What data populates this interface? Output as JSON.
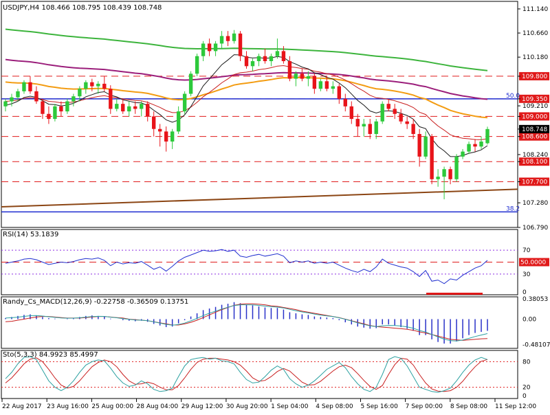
{
  "colors": {
    "background": "#ffffff",
    "grid": "#b4b4b4",
    "bull": "#2dc93b",
    "bear": "#e8141a",
    "ema_fast": "#1a1a1a",
    "ema_red": "#c81e1e",
    "ema_orange": "#f39c12",
    "ema_purple": "#9b1e7b",
    "ema_green": "#3cb43c",
    "trend_brown": "#8b4513",
    "fib_blue": "#1c2ad0",
    "level_red": "#e01a1a",
    "rsi_line": "#1f2fcf",
    "macd_hist": "#2830c8",
    "macd_signal": "#c81e1e",
    "macd_line": "#2aa0a0",
    "stoch_main": "#2aa0a0",
    "stoch_signal": "#c81e1e",
    "current_price_bg": "#000000"
  },
  "chart_data": [
    {
      "type": "candlestick",
      "panel": "main",
      "title": "USDJPY,H4  108.466 108.795 108.439 108.748",
      "ylim": [
        106.79,
        111.29
      ],
      "yticks": [
        "111.140",
        "110.660",
        "110.180",
        "109.800",
        "109.350",
        "109.210",
        "109.000",
        "108.748",
        "108.600",
        "108.240",
        "108.100",
        "107.700",
        "107.280",
        "106.790"
      ],
      "horizontal_levels": [
        {
          "value": 109.8,
          "label": "109.800",
          "style": "red-dashed"
        },
        {
          "value": 109.35,
          "label": "109.350",
          "style": "red-dashed"
        },
        {
          "value": 109.0,
          "label": "109.000",
          "style": "red-dashed"
        },
        {
          "value": 108.6,
          "label": "108.600",
          "style": "red-dashed"
        },
        {
          "value": 108.1,
          "label": "108.100",
          "style": "red-dashed"
        },
        {
          "value": 107.7,
          "label": "107.700",
          "style": "red-dashed"
        }
      ],
      "fib_levels": [
        {
          "value": 109.35,
          "label": "50.0"
        },
        {
          "value": 107.1,
          "label": "38.2"
        }
      ],
      "current_price": "108.748",
      "candles_ohlc": [
        [
          109.2,
          109.35,
          109.1,
          109.3
        ],
        [
          109.3,
          109.45,
          109.2,
          109.38
        ],
        [
          109.38,
          109.55,
          109.3,
          109.5
        ],
        [
          109.5,
          109.72,
          109.45,
          109.68
        ],
        [
          109.68,
          109.8,
          109.45,
          109.5
        ],
        [
          109.5,
          109.6,
          109.25,
          109.3
        ],
        [
          109.3,
          109.35,
          108.95,
          109.05
        ],
        [
          109.05,
          109.2,
          108.85,
          108.95
        ],
        [
          108.95,
          109.25,
          108.9,
          109.2
        ],
        [
          109.2,
          109.3,
          109.0,
          109.1
        ],
        [
          109.1,
          109.35,
          109.05,
          109.3
        ],
        [
          109.3,
          109.45,
          109.2,
          109.4
        ],
        [
          109.4,
          109.6,
          109.3,
          109.55
        ],
        [
          109.55,
          109.72,
          109.45,
          109.68
        ],
        [
          109.68,
          109.75,
          109.5,
          109.6
        ],
        [
          109.6,
          109.7,
          109.45,
          109.65
        ],
        [
          109.65,
          109.8,
          109.5,
          109.55
        ],
        [
          109.55,
          109.62,
          109.05,
          109.15
        ],
        [
          109.15,
          109.35,
          109.1,
          109.25
        ],
        [
          109.25,
          109.35,
          109.05,
          109.1
        ],
        [
          109.1,
          109.3,
          109.0,
          109.2
        ],
        [
          109.2,
          109.3,
          109.05,
          109.15
        ],
        [
          109.15,
          109.3,
          109.0,
          109.25
        ],
        [
          109.25,
          109.3,
          108.9,
          109.0
        ],
        [
          109.0,
          109.1,
          108.6,
          108.75
        ],
        [
          108.75,
          108.85,
          108.4,
          108.7
        ],
        [
          108.7,
          108.8,
          108.3,
          108.5
        ],
        [
          108.5,
          108.75,
          108.35,
          108.7
        ],
        [
          108.7,
          109.2,
          108.65,
          109.1
        ],
        [
          109.1,
          109.5,
          109.05,
          109.45
        ],
        [
          109.45,
          109.9,
          109.4,
          109.85
        ],
        [
          109.85,
          110.25,
          109.8,
          110.2
        ],
        [
          110.2,
          110.5,
          110.1,
          110.45
        ],
        [
          110.45,
          110.55,
          110.2,
          110.3
        ],
        [
          110.3,
          110.5,
          110.2,
          110.45
        ],
        [
          110.45,
          110.7,
          110.35,
          110.6
        ],
        [
          110.6,
          110.7,
          110.4,
          110.5
        ],
        [
          110.5,
          110.72,
          110.45,
          110.65
        ],
        [
          110.65,
          110.7,
          110.1,
          110.2
        ],
        [
          110.2,
          110.3,
          109.95,
          110.0
        ],
        [
          110.0,
          110.15,
          109.9,
          110.1
        ],
        [
          110.1,
          110.25,
          110.0,
          110.2
        ],
        [
          110.2,
          110.35,
          110.05,
          110.1
        ],
        [
          110.1,
          110.25,
          110.0,
          110.2
        ],
        [
          110.2,
          110.55,
          110.15,
          110.3
        ],
        [
          110.3,
          110.4,
          110.05,
          110.1
        ],
        [
          110.1,
          110.2,
          109.7,
          109.75
        ],
        [
          109.75,
          109.9,
          109.6,
          109.85
        ],
        [
          109.85,
          109.95,
          109.7,
          109.75
        ],
        [
          109.75,
          109.9,
          109.6,
          109.8
        ],
        [
          109.8,
          109.85,
          109.45,
          109.55
        ],
        [
          109.55,
          109.75,
          109.5,
          109.7
        ],
        [
          109.7,
          109.8,
          109.5,
          109.55
        ],
        [
          109.55,
          109.7,
          109.45,
          109.6
        ],
        [
          109.6,
          109.65,
          109.25,
          109.35
        ],
        [
          109.35,
          109.45,
          109.1,
          109.2
        ],
        [
          109.2,
          109.3,
          108.85,
          108.95
        ],
        [
          108.95,
          109.05,
          108.6,
          108.8
        ],
        [
          108.8,
          108.95,
          108.6,
          108.85
        ],
        [
          108.85,
          108.95,
          108.55,
          108.65
        ],
        [
          108.65,
          108.95,
          108.55,
          108.9
        ],
        [
          108.9,
          109.3,
          108.85,
          109.25
        ],
        [
          109.25,
          109.35,
          109.1,
          109.15
        ],
        [
          109.15,
          109.25,
          108.95,
          109.05
        ],
        [
          109.05,
          109.15,
          108.85,
          108.9
        ],
        [
          108.9,
          109.0,
          108.75,
          108.85
        ],
        [
          108.85,
          108.95,
          108.55,
          108.65
        ],
        [
          108.65,
          108.75,
          108.0,
          108.2
        ],
        [
          108.2,
          108.7,
          108.15,
          108.6
        ],
        [
          108.6,
          108.65,
          107.65,
          107.75
        ],
        [
          107.75,
          107.95,
          107.6,
          107.8
        ],
        [
          107.8,
          108.0,
          107.35,
          107.95
        ],
        [
          107.95,
          108.0,
          107.65,
          107.75
        ],
        [
          107.75,
          108.25,
          107.7,
          108.2
        ],
        [
          108.2,
          108.35,
          108.15,
          108.3
        ],
        [
          108.3,
          108.5,
          108.25,
          108.45
        ],
        [
          108.45,
          108.55,
          108.3,
          108.4
        ],
        [
          108.4,
          108.6,
          108.35,
          108.5
        ],
        [
          108.466,
          108.795,
          108.439,
          108.748
        ]
      ],
      "xlabels": [
        "22 Aug 2017",
        "23 Aug 16:00",
        "25 Aug 00:00",
        "28 Aug 04:00",
        "29 Aug 12:00",
        "30 Aug 20:00",
        "1 Sep 04:00",
        "4 Sep 08:00",
        "5 Sep 16:00",
        "7 Sep 00:00",
        "8 Sep 08:00",
        "11 Sep 12:00"
      ]
    },
    {
      "type": "line",
      "panel": "rsi",
      "title": "RSI(14) 53.1839",
      "ylim": [
        0,
        100
      ],
      "yticks": [
        "70",
        "50",
        "30",
        "0"
      ],
      "levels": [
        70,
        50,
        30
      ],
      "level_label": "50.0000",
      "values": [
        48,
        50,
        52,
        55,
        56,
        54,
        50,
        46,
        48,
        50,
        49,
        51,
        54,
        56,
        55,
        57,
        53,
        44,
        50,
        47,
        49,
        48,
        51,
        45,
        38,
        42,
        35,
        43,
        52,
        58,
        62,
        66,
        70,
        68,
        69,
        71,
        68,
        70,
        60,
        58,
        61,
        63,
        60,
        62,
        64,
        60,
        49,
        52,
        50,
        52,
        48,
        50,
        48,
        50,
        45,
        40,
        36,
        33,
        38,
        34,
        42,
        55,
        48,
        45,
        42,
        40,
        34,
        26,
        36,
        18,
        20,
        14,
        22,
        20,
        28,
        34,
        40,
        44,
        53
      ]
    },
    {
      "type": "bar",
      "panel": "macd",
      "title": "Randy_Cs_MACD(12,26,9) -0.22758 -0.36509 0.13751",
      "ylim": [
        -0.55,
        0.42
      ],
      "yticks": [
        "0.38053",
        "0.00",
        "-0.48107"
      ],
      "histogram": [
        0.02,
        0.04,
        0.06,
        0.08,
        0.09,
        0.07,
        0.04,
        0.02,
        0.01,
        0.0,
        0.01,
        0.02,
        0.04,
        0.06,
        0.07,
        0.06,
        0.05,
        0.01,
        0.0,
        -0.02,
        -0.03,
        -0.04,
        -0.03,
        -0.05,
        -0.09,
        -0.12,
        -0.15,
        -0.14,
        -0.08,
        -0.02,
        0.05,
        0.11,
        0.17,
        0.2,
        0.23,
        0.27,
        0.29,
        0.32,
        0.3,
        0.27,
        0.26,
        0.24,
        0.22,
        0.21,
        0.21,
        0.18,
        0.13,
        0.11,
        0.09,
        0.08,
        0.05,
        0.04,
        0.03,
        0.02,
        -0.02,
        -0.06,
        -0.1,
        -0.14,
        -0.16,
        -0.18,
        -0.17,
        -0.1,
        -0.1,
        -0.12,
        -0.15,
        -0.18,
        -0.22,
        -0.3,
        -0.3,
        -0.38,
        -0.43,
        -0.46,
        -0.46,
        -0.42,
        -0.36,
        -0.3,
        -0.26,
        -0.24,
        -0.22
      ],
      "signal": [
        -0.05,
        -0.04,
        -0.02,
        0.0,
        0.02,
        0.04,
        0.05,
        0.05,
        0.04,
        0.03,
        0.02,
        0.02,
        0.02,
        0.03,
        0.04,
        0.05,
        0.05,
        0.04,
        0.03,
        0.02,
        0.0,
        -0.01,
        -0.02,
        -0.03,
        -0.05,
        -0.07,
        -0.09,
        -0.11,
        -0.11,
        -0.09,
        -0.06,
        -0.02,
        0.03,
        0.08,
        0.13,
        0.18,
        0.22,
        0.26,
        0.28,
        0.29,
        0.29,
        0.28,
        0.27,
        0.25,
        0.24,
        0.22,
        0.2,
        0.18,
        0.15,
        0.13,
        0.11,
        0.09,
        0.07,
        0.05,
        0.03,
        0.0,
        -0.03,
        -0.06,
        -0.09,
        -0.12,
        -0.14,
        -0.15,
        -0.16,
        -0.17,
        -0.18,
        -0.19,
        -0.21,
        -0.24,
        -0.26,
        -0.29,
        -0.32,
        -0.35,
        -0.38,
        -0.39,
        -0.4,
        -0.39,
        -0.38,
        -0.37,
        -0.365
      ]
    },
    {
      "type": "line",
      "panel": "stochastic",
      "title": "Sto(5,3,3) 84.9923 85.4997",
      "ylim": [
        0,
        100
      ],
      "yticks": [
        "80",
        "20",
        "0"
      ],
      "levels": [
        80,
        20
      ],
      "main": [
        40,
        55,
        75,
        90,
        92,
        85,
        60,
        35,
        20,
        12,
        20,
        35,
        55,
        72,
        80,
        84,
        82,
        65,
        45,
        30,
        22,
        25,
        35,
        28,
        15,
        10,
        12,
        18,
        45,
        70,
        85,
        88,
        90,
        86,
        88,
        82,
        80,
        75,
        55,
        38,
        30,
        32,
        45,
        60,
        70,
        62,
        40,
        28,
        20,
        25,
        35,
        48,
        62,
        70,
        78,
        66,
        45,
        28,
        15,
        10,
        20,
        50,
        85,
        92,
        88,
        70,
        45,
        20,
        15,
        10,
        8,
        12,
        18,
        35,
        55,
        72,
        84,
        90,
        85
      ],
      "signal": [
        30,
        42,
        58,
        75,
        86,
        89,
        80,
        62,
        42,
        25,
        18,
        22,
        35,
        52,
        68,
        78,
        84,
        80,
        68,
        50,
        35,
        27,
        28,
        32,
        28,
        20,
        14,
        14,
        24,
        42,
        62,
        78,
        86,
        88,
        88,
        86,
        84,
        80,
        72,
        58,
        42,
        34,
        36,
        45,
        57,
        64,
        58,
        45,
        32,
        25,
        26,
        34,
        46,
        58,
        68,
        72,
        66,
        52,
        36,
        22,
        15,
        24,
        50,
        73,
        88,
        86,
        72,
        50,
        30,
        16,
        11,
        10,
        12,
        20,
        34,
        52,
        68,
        81,
        85
      ]
    }
  ]
}
